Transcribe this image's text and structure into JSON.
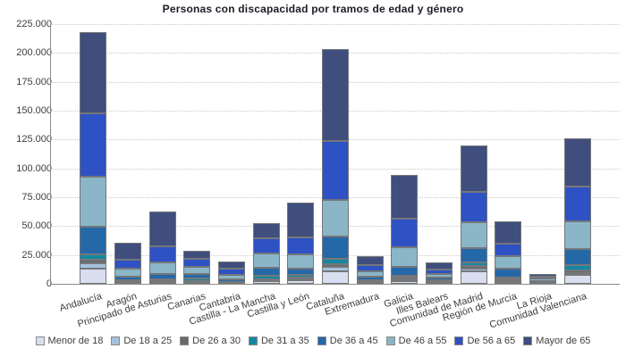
{
  "title": "Personas con discapacidad por tramos de edad y género",
  "chart_data": {
    "type": "bar",
    "stacked": true,
    "title": "Personas con discapacidad por tramos de edad y género",
    "xlabel": "",
    "ylabel": "",
    "ylim": [
      0,
      225000
    ],
    "ytick_step": 25000,
    "ytick_labels": [
      "0",
      "25.000",
      "50.000",
      "75.000",
      "100.000",
      "125.000",
      "150.000",
      "175.000",
      "200.000",
      "225.000"
    ],
    "grid": "horizontal-dotted",
    "legend_position": "bottom",
    "categories": [
      "Andalucía",
      "Aragón",
      "Principado de Asturias",
      "Canarias",
      "Cantabria",
      "Castilla - La Mancha",
      "Castilla y León",
      "Cataluña",
      "Extremadura",
      "Galicia",
      "Illes Balears",
      "Comunidad de Madrid",
      "Región de Murcia",
      "La Rioja",
      "Comunidad Valenciana"
    ],
    "series": [
      {
        "name": "Menor de 18",
        "color": "#d9def0",
        "values": [
          13000,
          700,
          1000,
          800,
          400,
          2400,
          3200,
          11000,
          1300,
          2200,
          1300,
          10800,
          1800,
          500,
          7700
        ]
      },
      {
        "name": "De 18 a 25",
        "color": "#a6c1dd",
        "values": [
          4700,
          600,
          800,
          700,
          350,
          900,
          1200,
          3900,
          600,
          1700,
          700,
          2500,
          1100,
          400,
          1300
        ]
      },
      {
        "name": "De 26 a 30",
        "color": "#68696b",
        "values": [
          3000,
          500,
          700,
          600,
          300,
          800,
          1000,
          2500,
          600,
          1500,
          500,
          2100,
          900,
          300,
          2300
        ]
      },
      {
        "name": "De 31 a 35",
        "color": "#1488a2",
        "values": [
          5100,
          1200,
          1600,
          2800,
          700,
          2600,
          2000,
          4400,
          800,
          1800,
          600,
          3100,
          1800,
          400,
          4600
        ]
      },
      {
        "name": "De 36 a 45",
        "color": "#2568a8",
        "values": [
          23800,
          3500,
          4300,
          3800,
          1850,
          7150,
          5600,
          19200,
          3100,
          7700,
          2000,
          12800,
          7700,
          1000,
          14100
        ]
      },
      {
        "name": "De 46 a 55",
        "color": "#8ab6c8",
        "values": [
          43300,
          6500,
          9800,
          5650,
          3800,
          12550,
          12900,
          32000,
          4600,
          16600,
          3100,
          21800,
          11050,
          1700,
          23800
        ]
      },
      {
        "name": "De 56 a 65",
        "color": "#2e51c4",
        "values": [
          54500,
          7700,
          14000,
          7650,
          5600,
          13000,
          14500,
          50800,
          5150,
          25200,
          4100,
          26900,
          10250,
          1900,
          30800
        ]
      },
      {
        "name": "Mayor de 65",
        "color": "#3f4e7d",
        "values": [
          70400,
          14600,
          30300,
          6900,
          6500,
          13000,
          29600,
          79500,
          7700,
          37650,
          6400,
          39750,
          19750,
          2300,
          41550
        ]
      }
    ],
    "totals": [
      217800,
      35300,
      62500,
      28900,
      19500,
      52400,
      70000,
      203300,
      23850,
      94350,
      18700,
      119750,
      54350,
      8500,
      126150
    ]
  }
}
